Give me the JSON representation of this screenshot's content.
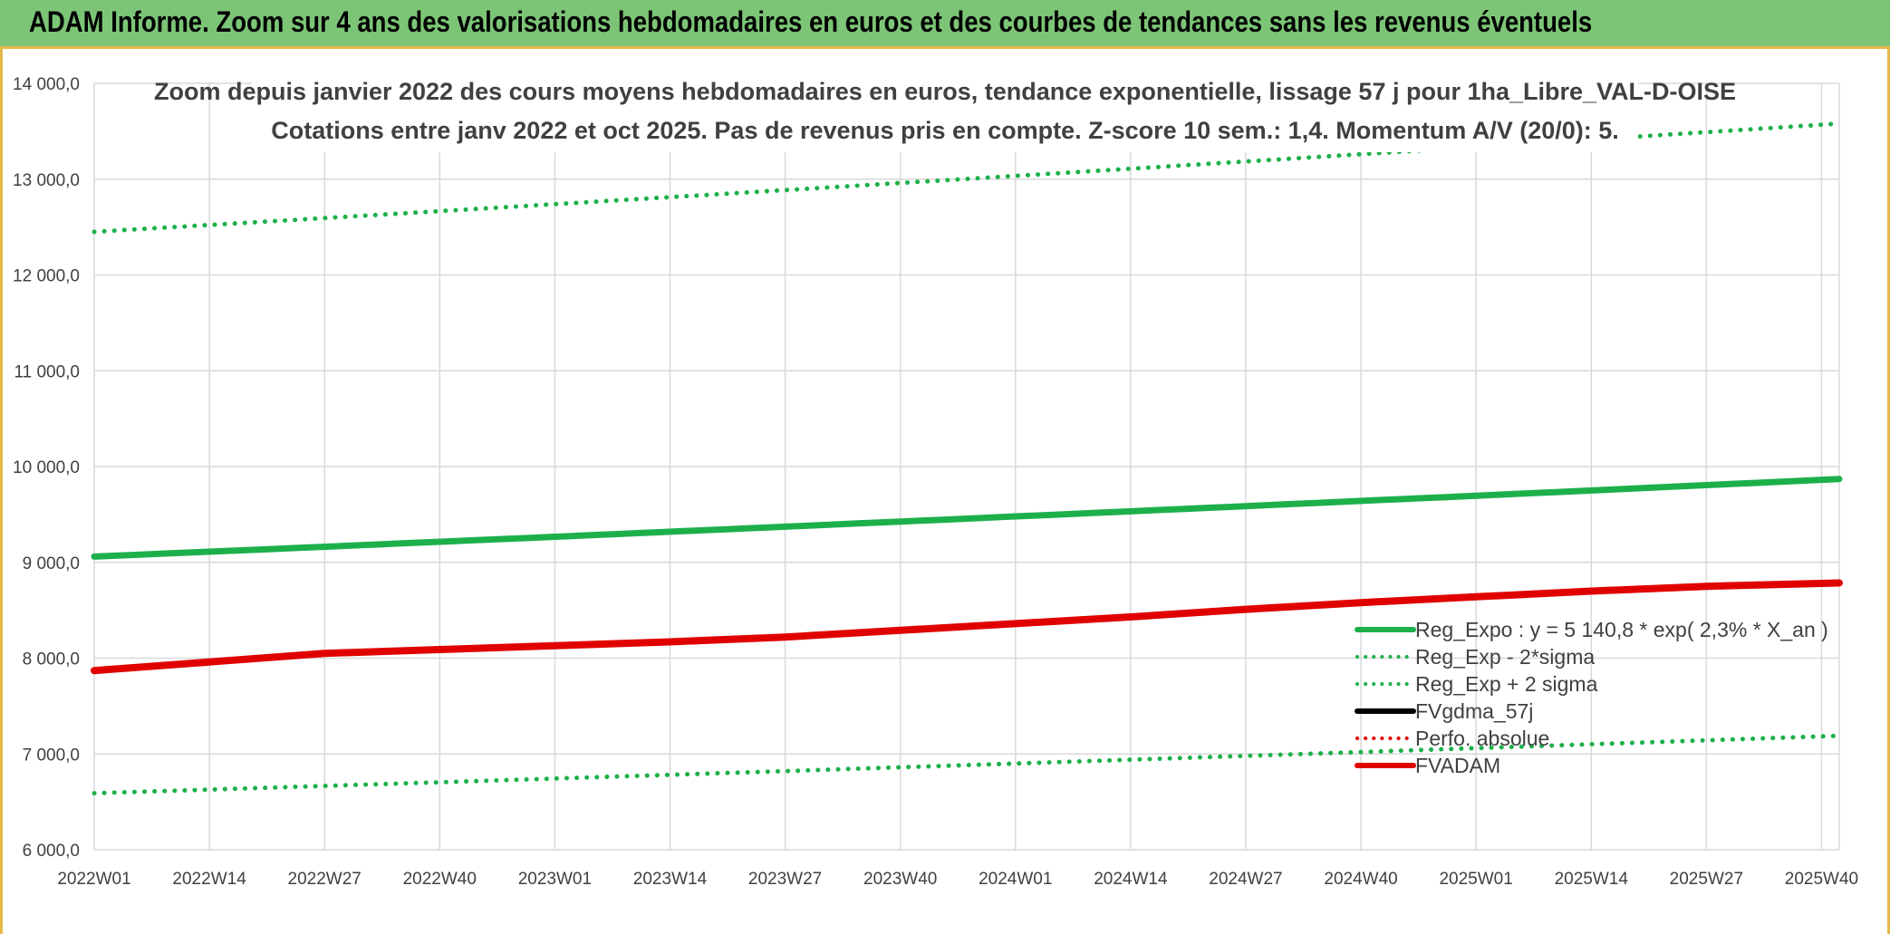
{
  "banner": {
    "title": "ADAM Informe. Zoom sur 4 ans des valorisations hebdomadaires en euros et des courbes de tendances sans les revenus éventuels"
  },
  "chart_data": {
    "type": "line",
    "title": "Zoom depuis janvier 2022 des cours moyens hebdomadaires en euros, tendance exponentielle, lissage 57 j pour 1ha_Libre_VAL-D-OISE",
    "subtitle": "Cotations entre janv 2022 et oct 2025. Pas de revenus pris en compte. Z-score 10 sem.: 1,4. Momentum A/V (20/0): 5.",
    "x_categories": [
      "2022W01",
      "2022W14",
      "2022W27",
      "2022W40",
      "2023W01",
      "2023W14",
      "2023W27",
      "2023W40",
      "2024W01",
      "2024W14",
      "2024W27",
      "2024W40",
      "2025W01",
      "2025W14",
      "2025W27",
      "2025W40"
    ],
    "x_last": "2025W42",
    "y_ticks": [
      "6 000,0",
      "7 000,0",
      "8 000,0",
      "9 000,0",
      "10 000,0",
      "11 000,0",
      "12 000,0",
      "13 000,0",
      "14 000,0"
    ],
    "ylim": [
      6000,
      14000
    ],
    "grid": true,
    "legend_position": "bottom-right",
    "series": [
      {
        "name": "Reg_Expo : y = 5 140,8 * exp( 2,3% *  X_an )",
        "color": "#1db04a",
        "style": "solid",
        "x": [
          "2022W01",
          "2025W42"
        ],
        "values": [
          9060,
          9870
        ]
      },
      {
        "name": "Reg_Exp - 2*sigma",
        "color": "#1db04a",
        "style": "dotted",
        "x": [
          "2022W01",
          "2025W42"
        ],
        "values": [
          6590,
          7190
        ]
      },
      {
        "name": "Reg_Exp + 2 sigma",
        "color": "#1db04a",
        "style": "dotted",
        "x": [
          "2022W01",
          "2025W42"
        ],
        "values": [
          12450,
          13580
        ]
      },
      {
        "name": "FVgdma_57j",
        "color": "#000000",
        "style": "solid",
        "x": [],
        "values": []
      },
      {
        "name": "Perfo. absolue",
        "color": "#e00000",
        "style": "dotted",
        "x": [],
        "values": []
      },
      {
        "name": "FVADAM",
        "color": "#e00000",
        "style": "solid",
        "x": [
          "2022W01",
          "2022W14",
          "2022W27",
          "2022W40",
          "2023W01",
          "2023W14",
          "2023W27",
          "2023W40",
          "2024W01",
          "2024W14",
          "2024W27",
          "2024W40",
          "2025W01",
          "2025W14",
          "2025W27",
          "2025W40",
          "2025W42"
        ],
        "values": [
          7870,
          7960,
          8050,
          8090,
          8130,
          8170,
          8220,
          8290,
          8360,
          8430,
          8510,
          8580,
          8640,
          8700,
          8750,
          8780,
          8785
        ]
      }
    ]
  }
}
